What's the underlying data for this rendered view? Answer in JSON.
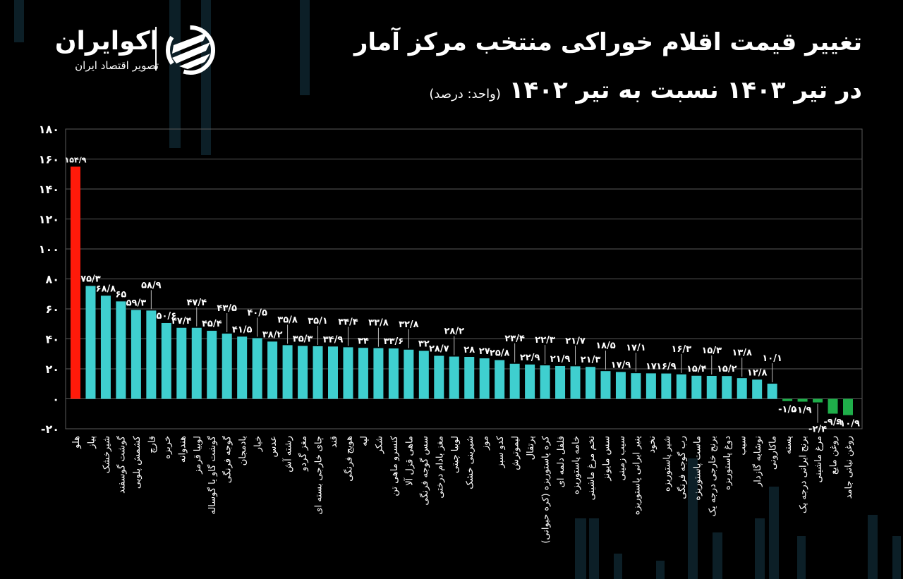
{
  "header": {
    "title": "تغییر قیمت اقلام خوراکی منتخب مرکز آمار",
    "subtitle": "در تیر ۱۴۰۳ نسبت به تیر ۱۴۰۲",
    "unit": "(واحد: درصد)"
  },
  "logo": {
    "name": "اکوایران",
    "tagline": "تصویر اقتصاد ایران"
  },
  "colors": {
    "background": "#000000",
    "highlight": "#ff1a0a",
    "positive": "#3fcfcf",
    "negative": "#1fae4a",
    "grid": "#5a5a5a"
  },
  "chart_data": {
    "type": "bar",
    "title": "تغییر قیمت اقلام خوراکی منتخب مرکز آمار در تیر ۱۴۰۳ نسبت به تیر ۱۴۰۲",
    "xlabel": "",
    "ylabel": "",
    "ylim": [
      -20,
      180
    ],
    "grid": true,
    "y_ticks": [
      180,
      160,
      140,
      120,
      100,
      80,
      60,
      40,
      20,
      0,
      -20
    ],
    "y_tick_labels": [
      "۱۸۰",
      "۱۶۰",
      "۱۴۰",
      "۱۲۰",
      "۱۰۰",
      "۸۰",
      "۶۰",
      "۴۰",
      "۲۰",
      "۰",
      "-۲۰"
    ],
    "categories": [
      "هلو",
      "پیاز",
      "شیرخشک",
      "گوشت گوسفند",
      "کشمش پلویی",
      "قارچ",
      "خربزه",
      "هندوانه",
      "لوبیا قرمز",
      "گوشت گاو یا گوساله",
      "گوجه فرنگی",
      "بادمجان",
      "خیار",
      "عدس",
      "رشته آش",
      "مغز گردو",
      "چای خارجی بسته ای",
      "قند",
      "هویج فرنگی",
      "لپه",
      "شکر",
      "کنسرو ماهی تن",
      "ماهی قزل آلا",
      "سس گوجه فرنگی",
      "مغز بادام درختی",
      "لوبیا چیتی",
      "شیرینی خشک",
      "موز",
      "کدو سبز",
      "لیموترش",
      "پرتقال",
      "کره پاستوریزه (کره حیوانی)",
      "فلفل دلمه ای",
      "خامه پاستوریزه",
      "تخم مرغ ماشینی",
      "سس مایونز",
      "سیب زمینی",
      "پنیر ایرانی پاستوریزه",
      "نخود",
      "شیر پاستوریزه",
      "رب گوجه فرنگی",
      "ماست پاستوریزه",
      "برنج خارجی درجه یک",
      "دوغ پاستوریزه",
      "سیب",
      "نوشابه گازدار",
      "ماکارونی",
      "پسته",
      "برنج ایرانی درجه یک",
      "مرغ ماشینی",
      "روغن مایع",
      "روغن نباتی جامد"
    ],
    "values": [
      154.9,
      75.3,
      68.8,
      65,
      59.3,
      58.9,
      50.6,
      47.4,
      47.4,
      45.4,
      43.5,
      41.5,
      40.5,
      38.2,
      35.8,
      35.3,
      35.1,
      34.9,
      34.4,
      34,
      33.8,
      33.6,
      32.8,
      32,
      28.7,
      28.2,
      28,
      27,
      25.8,
      23.4,
      22.9,
      22.3,
      21.9,
      21.7,
      21.3,
      18.5,
      17.9,
      17.1,
      17,
      16.9,
      16.3,
      15.4,
      15.3,
      15.2,
      13.8,
      12.8,
      10.1,
      -1.5,
      -1.9,
      -2.4,
      -9.9,
      -10.9
    ],
    "value_labels": [
      "۱۵۴/۹",
      "۷۵/۳",
      "۶۸/۸",
      "۶۵",
      "۵۹/۳",
      "۵۸/۹",
      "۵۰/۶",
      "۴۷/۴",
      "۴۷/۴",
      "۴۵/۴",
      "۴۳/۵",
      "۴۱/۵",
      "۴۰/۵",
      "۳۸/۲",
      "۳۵/۸",
      "۳۵/۳",
      "۳۵/۱",
      "۳۴/۹",
      "۳۴/۴",
      "۳۴",
      "۳۳/۸",
      "۳۳/۶",
      "۳۲/۸",
      "۳۲",
      "۲۸/۷",
      "۲۸/۲",
      "۲۸",
      "۲۷",
      "۲۵/۸",
      "۲۳/۴",
      "۲۲/۹",
      "۲۲/۳",
      "۲۱/۹",
      "۲۱/۷",
      "۲۱/۳",
      "۱۸/۵",
      "۱۷/۹",
      "۱۷/۱",
      "۱۷",
      "۱۶/۹",
      "۱۶/۳",
      "۱۵/۴",
      "۱۵/۳",
      "۱۵/۲",
      "۱۳/۸",
      "۱۲/۸",
      "۱۰/۱",
      "-۱/۵",
      "-۱/۹",
      "-۲/۴",
      "-۹/۹",
      "-۱۰/۹"
    ]
  }
}
